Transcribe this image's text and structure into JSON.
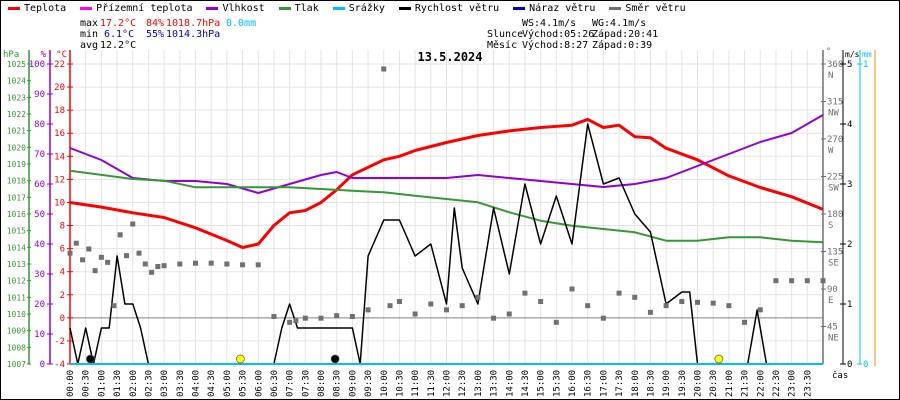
{
  "legend": [
    {
      "label": "Teplota",
      "color": "#ff0000"
    },
    {
      "label": "Přízemní teplota",
      "color": "#ff00ff"
    },
    {
      "label": "Vlhkost",
      "color": "#9400d3"
    },
    {
      "label": "Tlak",
      "color": "#339933"
    },
    {
      "label": "Srážky",
      "color": "#00bfff"
    },
    {
      "label": "Rychlost větru",
      "color": "#000000"
    },
    {
      "label": "Náraz větru",
      "color": "#0000cc"
    },
    {
      "label": "Směr větru",
      "color": "#707070"
    }
  ],
  "stats": {
    "max_label": "max",
    "max_temp": "17.2°C",
    "max_hum": "84%",
    "max_press": "1018.7hPa",
    "max_rain": "0.0mm",
    "min_label": "min",
    "min_temp": "6.1°C",
    "min_hum": "55%",
    "min_press": "1014.3hPa",
    "avg_label": "avg",
    "avg_temp": "12.2°C",
    "ws": "WS:4.1m/s",
    "wg": "WG:4.1m/s",
    "sun_label": "Slunce",
    "sun_rise": "Východ:05:26",
    "sun_set": "Západ:20:41",
    "moon_label": "Měsíc",
    "moon_rise": "Východ:8:27",
    "moon_set": "Západ:0:39"
  },
  "chart_data": {
    "type": "line",
    "title": "13.5.2024",
    "xlabel": "čas",
    "x_ticks": [
      "00:00",
      "00:30",
      "01:00",
      "01:30",
      "02:00",
      "02:30",
      "03:00",
      "03:30",
      "04:00",
      "04:30",
      "05:00",
      "05:30",
      "06:00",
      "06:30",
      "07:00",
      "07:30",
      "08:00",
      "08:30",
      "09:00",
      "09:30",
      "10:00",
      "10:30",
      "11:00",
      "11:30",
      "12:00",
      "12:30",
      "13:00",
      "13:30",
      "14:00",
      "14:30",
      "15:00",
      "15:30",
      "16:00",
      "16:30",
      "17:00",
      "17:30",
      "18:00",
      "18:30",
      "19:00",
      "19:30",
      "20:00",
      "20:30",
      "21:00",
      "21:30",
      "22:00",
      "22:30",
      "23:00",
      "23:30"
    ],
    "xlim_hours": [
      0,
      24
    ],
    "grid": true,
    "axes": {
      "pressure": {
        "unit": "hPa",
        "range": [
          1007,
          1025
        ],
        "ticks": [
          1007,
          1008,
          1009,
          1010,
          1011,
          1012,
          1013,
          1014,
          1015,
          1016,
          1017,
          1018,
          1019,
          1020,
          1021,
          1022,
          1023,
          1024,
          1025
        ],
        "color": "#339933"
      },
      "humidity": {
        "unit": "%",
        "range": [
          0,
          100
        ],
        "ticks": [
          0,
          10,
          20,
          30,
          40,
          50,
          60,
          70,
          80,
          90,
          100
        ],
        "color": "#9400d3"
      },
      "temperature": {
        "unit": "°C",
        "range": [
          -4,
          22
        ],
        "ticks": [
          -4,
          -2,
          0,
          2,
          4,
          6,
          8,
          10,
          12,
          14,
          16,
          18,
          20,
          22
        ],
        "color": "#ff0000"
      },
      "direction": {
        "unit": "°",
        "range": [
          0,
          360
        ],
        "ticks": [
          {
            "v": 45,
            "l": "NE"
          },
          {
            "v": 90,
            "l": "E"
          },
          {
            "v": 135,
            "l": "SE"
          },
          {
            "v": 180,
            "l": "S"
          },
          {
            "v": 225,
            "l": "SW"
          },
          {
            "v": 270,
            "l": "W"
          },
          {
            "v": 315,
            "l": "NW"
          },
          {
            "v": 360,
            "l": "N"
          }
        ],
        "color": "#707070"
      },
      "wind": {
        "unit": "m/s",
        "range": [
          0,
          5
        ],
        "ticks": [
          0,
          1,
          2,
          3,
          4,
          5
        ],
        "color": "#000000"
      },
      "rain": {
        "unit": "mm",
        "range": [
          0,
          1
        ],
        "ticks": [
          0,
          1
        ],
        "color": "#00bfff"
      }
    },
    "series": [
      {
        "name": "Teplota",
        "axis": "temperature",
        "color": "#ff0000",
        "x": [
          0,
          1,
          2,
          3,
          4,
          5,
          5.5,
          6,
          6.5,
          7,
          7.5,
          8,
          8.5,
          9,
          10,
          10.5,
          11,
          12,
          13,
          14,
          15,
          16,
          16.5,
          17,
          17.5,
          18,
          18.5,
          19,
          20,
          21,
          22,
          23,
          24
        ],
        "y": [
          10.0,
          9.6,
          9.1,
          8.7,
          7.8,
          6.7,
          6.1,
          6.4,
          8.0,
          9.1,
          9.3,
          10.0,
          11.1,
          12.4,
          13.7,
          14.0,
          14.5,
          15.2,
          15.8,
          16.2,
          16.5,
          16.7,
          17.2,
          16.5,
          16.7,
          15.7,
          15.6,
          14.7,
          13.7,
          12.3,
          11.3,
          10.5,
          9.4
        ]
      },
      {
        "name": "Vlhkost",
        "axis": "humidity",
        "color": "#9400d3",
        "x": [
          0,
          1,
          2,
          3,
          4,
          5,
          6,
          7,
          8,
          8.5,
          9,
          10,
          11,
          12,
          13,
          14,
          15,
          16,
          17,
          18,
          19,
          20,
          21,
          22,
          23,
          24
        ],
        "y": [
          72,
          68,
          62,
          61,
          61,
          60,
          57,
          60,
          63,
          64,
          62,
          62,
          62,
          62,
          63,
          62,
          61,
          60,
          59,
          60,
          62,
          66,
          70,
          74,
          77,
          83
        ]
      },
      {
        "name": "Tlak",
        "axis": "pressure",
        "color": "#339933",
        "x": [
          0,
          2,
          3,
          4,
          5,
          6,
          7,
          8,
          9,
          10,
          11,
          12,
          13,
          14,
          15,
          16,
          17,
          18,
          19,
          20,
          21,
          22,
          23,
          24
        ],
        "y": [
          1018.6,
          1018.1,
          1018.0,
          1017.6,
          1017.6,
          1017.6,
          1017.6,
          1017.5,
          1017.4,
          1017.3,
          1017.1,
          1016.9,
          1016.7,
          1016.1,
          1015.6,
          1015.3,
          1015.1,
          1014.9,
          1014.4,
          1014.4,
          1014.6,
          1014.6,
          1014.4,
          1014.3
        ]
      },
      {
        "name": "Rychlost větru",
        "axis": "wind",
        "color": "#000000",
        "x": [
          0,
          0.25,
          0.5,
          0.75,
          1,
          1.25,
          1.5,
          1.75,
          2,
          2.25,
          2.5,
          3,
          6.5,
          6.75,
          7,
          7.25,
          7.5,
          8,
          8.5,
          9,
          9.25,
          9.5,
          10,
          10.5,
          11,
          11.5,
          12,
          12.25,
          12.5,
          13,
          13.5,
          14,
          14.5,
          15,
          15.5,
          16,
          16.5,
          17,
          17.5,
          18,
          18.5,
          19,
          19.5,
          19.75,
          20,
          21.6,
          21.9,
          22.2,
          24
        ],
        "y": [
          0.6,
          0,
          0.6,
          0,
          0.6,
          0.6,
          1.8,
          1.0,
          1.0,
          0.6,
          0,
          0,
          0,
          0.6,
          1.0,
          0.6,
          0.6,
          0.6,
          0.6,
          0.6,
          0,
          1.8,
          2.4,
          2.4,
          1.8,
          2.0,
          1.0,
          2.6,
          1.6,
          1.0,
          2.6,
          1.5,
          3.0,
          2.0,
          2.8,
          2.0,
          4.0,
          3.0,
          3.1,
          2.5,
          2.2,
          1.0,
          1.2,
          1.2,
          0,
          0,
          0.9,
          0,
          0
        ]
      },
      {
        "name": "Srážky",
        "axis": "rain",
        "color": "#00bfff",
        "x": [
          0,
          24
        ],
        "y": [
          0,
          0
        ]
      },
      {
        "name": "Směr větru",
        "axis": "direction",
        "color": "#707070",
        "type": "scatter",
        "x": [
          0,
          0.2,
          0.4,
          0.6,
          0.8,
          1.0,
          1.2,
          1.4,
          1.6,
          1.8,
          2.0,
          2.2,
          2.4,
          2.6,
          2.8,
          3,
          3.5,
          4,
          4.5,
          5,
          5.5,
          6,
          6.5,
          7,
          7.2,
          7.5,
          8,
          8.5,
          9,
          9.5,
          10,
          10.2,
          10.5,
          11,
          11.5,
          12,
          12.5,
          13,
          13.5,
          14,
          14.5,
          15,
          15.5,
          16,
          16.5,
          17,
          17.5,
          18,
          18.5,
          19,
          19.5,
          20,
          20.5,
          21,
          21.5,
          22,
          22.5,
          23,
          23.5,
          24
        ],
        "y": [
          133,
          145,
          125,
          138,
          112,
          128,
          122,
          70,
          155,
          130,
          168,
          133,
          120,
          110,
          117,
          118,
          120,
          121,
          121,
          120,
          119,
          119,
          57,
          50,
          52,
          55,
          55,
          58,
          57,
          65,
          354,
          70,
          75,
          60,
          72,
          65,
          70,
          80,
          55,
          60,
          85,
          75,
          50,
          90,
          70,
          55,
          85,
          80,
          62,
          70,
          75,
          74,
          73,
          70,
          50,
          65,
          100,
          100,
          100,
          100
        ]
      }
    ],
    "markers": [
      {
        "kind": "moonset",
        "time": "00:39",
        "x": 0.65,
        "color": "#000000"
      },
      {
        "kind": "sunrise",
        "time": "05:26",
        "x": 5.43,
        "color": "#ffff00"
      },
      {
        "kind": "moonrise",
        "time": "08:27",
        "x": 8.45,
        "color": "#000000"
      },
      {
        "kind": "sunset",
        "time": "20:41",
        "x": 20.68,
        "color": "#ffff00"
      }
    ]
  }
}
